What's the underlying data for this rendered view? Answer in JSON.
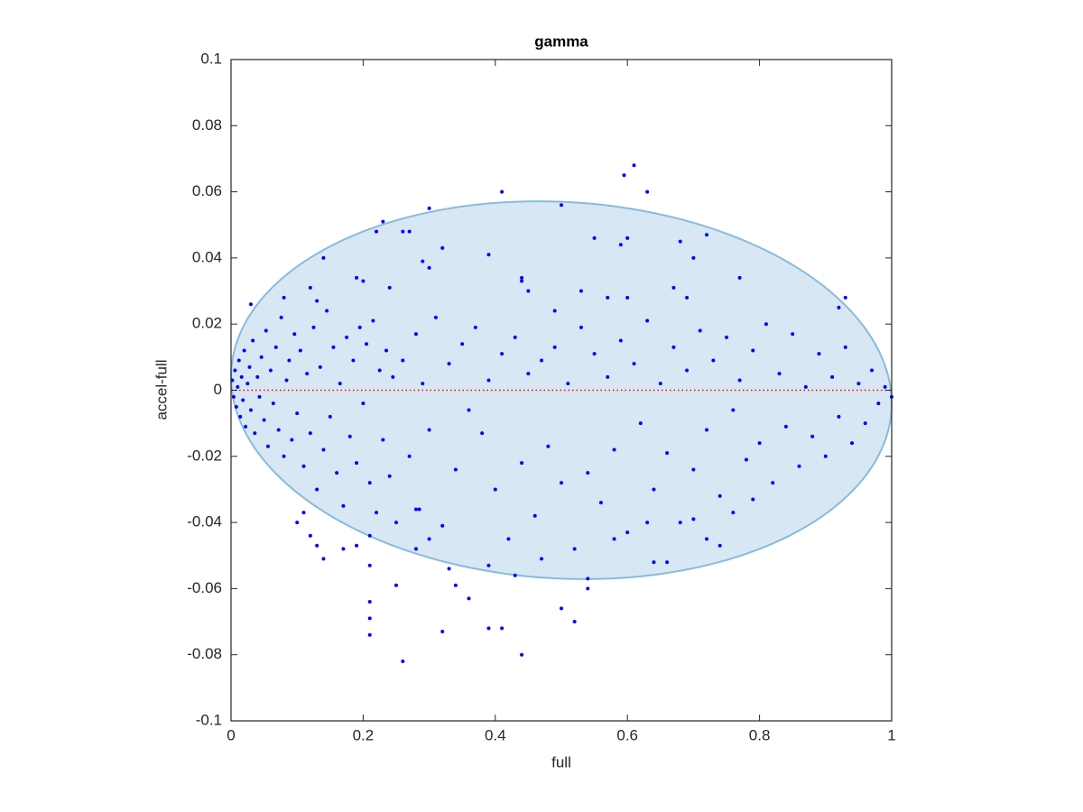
{
  "chart_data": {
    "type": "scatter",
    "title": "gamma",
    "x_label": "full",
    "y_label": "accel-full",
    "xlim": [
      0,
      1
    ],
    "ylim": [
      -0.1,
      0.1
    ],
    "xticks": [
      0,
      0.2,
      0.4,
      0.6,
      0.8,
      1
    ],
    "yticks": [
      -0.1,
      -0.08,
      -0.06,
      -0.04,
      -0.02,
      0,
      0.02,
      0.04,
      0.06,
      0.08,
      0.1
    ],
    "color": "#0000ff",
    "reference_line": {
      "value": 0,
      "color": "#ff0000"
    },
    "ellipse": {
      "center": [
        0.5,
        0
      ],
      "x_radius": 0.5,
      "y_radius": 0.057,
      "shear": -0.004,
      "fill": "#d7e7f3",
      "stroke": "#88bbdd"
    },
    "x": [
      0.002,
      0.004,
      0.006,
      0.008,
      0.01,
      0.012,
      0.014,
      0.016,
      0.018,
      0.02,
      0.022,
      0.025,
      0.028,
      0.03,
      0.033,
      0.036,
      0.04,
      0.043,
      0.046,
      0.05,
      0.053,
      0.056,
      0.06,
      0.064,
      0.068,
      0.072,
      0.076,
      0.08,
      0.084,
      0.088,
      0.092,
      0.096,
      0.1,
      0.105,
      0.11,
      0.115,
      0.12,
      0.125,
      0.13,
      0.135,
      0.14,
      0.145,
      0.15,
      0.155,
      0.16,
      0.165,
      0.17,
      0.175,
      0.18,
      0.185,
      0.19,
      0.195,
      0.2,
      0.205,
      0.21,
      0.215,
      0.22,
      0.225,
      0.23,
      0.235,
      0.24,
      0.245,
      0.25,
      0.26,
      0.27,
      0.28,
      0.285,
      0.29,
      0.3,
      0.31,
      0.32,
      0.33,
      0.34,
      0.35,
      0.36,
      0.37,
      0.38,
      0.39,
      0.4,
      0.41,
      0.42,
      0.43,
      0.44,
      0.45,
      0.46,
      0.47,
      0.48,
      0.49,
      0.5,
      0.51,
      0.52,
      0.53,
      0.54,
      0.55,
      0.56,
      0.57,
      0.58,
      0.59,
      0.6,
      0.61,
      0.62,
      0.63,
      0.64,
      0.65,
      0.66,
      0.67,
      0.68,
      0.69,
      0.7,
      0.71,
      0.72,
      0.73,
      0.74,
      0.75,
      0.76,
      0.77,
      0.78,
      0.79,
      0.8,
      0.81,
      0.82,
      0.83,
      0.84,
      0.85,
      0.86,
      0.87,
      0.88,
      0.89,
      0.9,
      0.91,
      0.92,
      0.93,
      0.94,
      0.95,
      0.96,
      0.97,
      0.98,
      0.99,
      1.0,
      0.61,
      0.595,
      0.63,
      0.41,
      0.5,
      0.3,
      0.22,
      0.27,
      0.23,
      0.14,
      0.29,
      0.3,
      0.32,
      0.39,
      0.55,
      0.59,
      0.6,
      0.68,
      0.7,
      0.72,
      0.77,
      0.44,
      0.45,
      0.49,
      0.53,
      0.57,
      0.6,
      0.67,
      0.69,
      0.93,
      0.92,
      0.03,
      0.08,
      0.12,
      0.13,
      0.19,
      0.2,
      0.24,
      0.26,
      0.44,
      0.26,
      0.44,
      0.21,
      0.32,
      0.39,
      0.41,
      0.21,
      0.21,
      0.52,
      0.5,
      0.25,
      0.34,
      0.36,
      0.33,
      0.14,
      0.17,
      0.19,
      0.21,
      0.21,
      0.12,
      0.13,
      0.1,
      0.11,
      0.54,
      0.54,
      0.43,
      0.39,
      0.64,
      0.66,
      0.72,
      0.74,
      0.76,
      0.79,
      0.7,
      0.28,
      0.28,
      0.3,
      0.47,
      0.63,
      0.58
    ],
    "values": [
      0.003,
      -0.002,
      0.006,
      -0.005,
      0.001,
      0.009,
      -0.008,
      0.004,
      -0.003,
      0.012,
      -0.011,
      0.002,
      0.007,
      -0.006,
      0.015,
      -0.013,
      0.004,
      -0.002,
      0.01,
      -0.009,
      0.018,
      -0.017,
      0.006,
      -0.004,
      0.013,
      -0.012,
      0.022,
      -0.02,
      0.003,
      0.009,
      -0.015,
      0.017,
      -0.007,
      0.012,
      -0.023,
      0.005,
      -0.013,
      0.019,
      -0.03,
      0.007,
      -0.018,
      0.024,
      -0.008,
      0.013,
      -0.025,
      0.002,
      -0.035,
      0.016,
      -0.014,
      0.009,
      -0.022,
      0.019,
      -0.004,
      0.014,
      -0.028,
      0.021,
      -0.037,
      0.006,
      -0.015,
      0.012,
      -0.026,
      0.004,
      -0.04,
      0.009,
      -0.02,
      0.017,
      -0.036,
      0.002,
      -0.012,
      0.022,
      -0.041,
      0.008,
      -0.024,
      0.014,
      -0.006,
      0.019,
      -0.013,
      0.003,
      -0.03,
      0.011,
      -0.045,
      0.016,
      -0.022,
      0.005,
      -0.038,
      0.009,
      -0.017,
      0.013,
      -0.028,
      0.002,
      -0.048,
      0.019,
      -0.025,
      0.011,
      -0.034,
      0.004,
      -0.018,
      0.015,
      -0.043,
      0.008,
      -0.01,
      0.021,
      -0.03,
      0.002,
      -0.019,
      0.013,
      -0.04,
      0.006,
      -0.024,
      0.018,
      -0.012,
      0.009,
      -0.032,
      0.016,
      -0.006,
      0.003,
      -0.021,
      0.012,
      -0.016,
      0.02,
      -0.028,
      0.005,
      -0.011,
      0.017,
      -0.023,
      0.001,
      -0.014,
      0.011,
      -0.02,
      0.004,
      -0.008,
      0.013,
      -0.016,
      0.002,
      -0.01,
      0.006,
      -0.004,
      0.001,
      -0.002,
      0.068,
      0.065,
      0.06,
      0.06,
      0.056,
      0.055,
      0.048,
      0.048,
      0.051,
      0.04,
      0.039,
      0.037,
      0.043,
      0.041,
      0.046,
      0.044,
      0.046,
      0.045,
      0.04,
      0.047,
      0.034,
      0.033,
      0.03,
      0.024,
      0.03,
      0.028,
      0.028,
      0.031,
      0.028,
      0.028,
      0.025,
      0.026,
      0.028,
      0.031,
      0.027,
      0.034,
      0.033,
      0.031,
      0.048,
      0.034,
      -0.082,
      -0.08,
      -0.074,
      -0.073,
      -0.072,
      -0.072,
      -0.069,
      -0.064,
      -0.07,
      -0.066,
      -0.059,
      -0.059,
      -0.063,
      -0.054,
      -0.051,
      -0.048,
      -0.047,
      -0.053,
      -0.044,
      -0.044,
      -0.047,
      -0.04,
      -0.037,
      -0.06,
      -0.057,
      -0.056,
      -0.053,
      -0.052,
      -0.052,
      -0.045,
      -0.047,
      -0.037,
      -0.033,
      -0.039,
      -0.048,
      -0.036,
      -0.045,
      -0.051,
      -0.04,
      -0.045
    ]
  }
}
